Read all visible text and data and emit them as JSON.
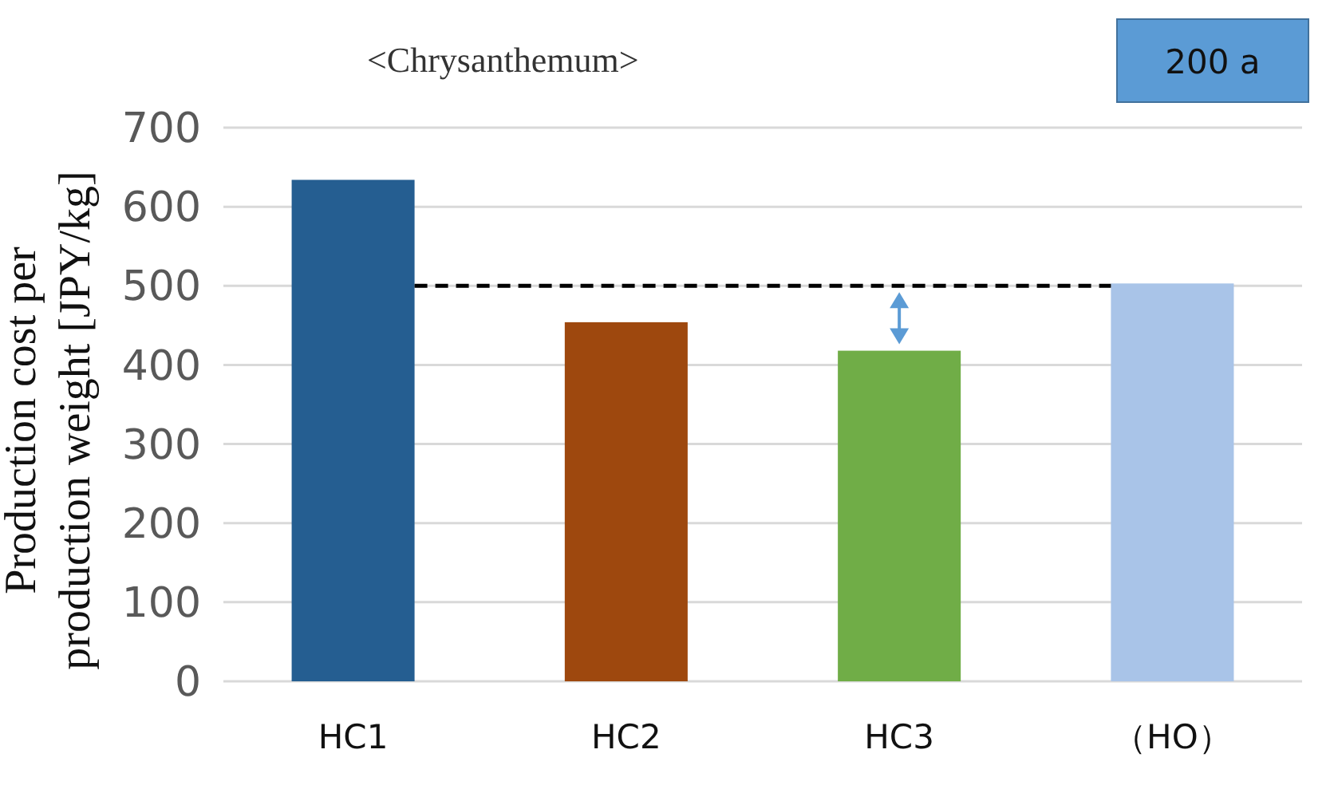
{
  "chart_data": {
    "type": "bar",
    "title": "<Chrysanthemum>",
    "ylabel": "Production cost per production weight [JPY/kg]",
    "categories": [
      "HC1",
      "HC2",
      "HC3",
      "（HO）"
    ],
    "values": [
      634,
      454,
      418,
      503
    ],
    "colors": [
      "#255e91",
      "#9e480e",
      "#70ad47",
      "#a9c4e8"
    ],
    "ylim": [
      0,
      700
    ],
    "yticks": [
      0,
      100,
      200,
      300,
      400,
      500,
      600,
      700
    ],
    "grid": "y",
    "ref_lines": [
      {
        "axis": "y",
        "value": 500,
        "color": "#000000",
        "line_style": "dashed"
      }
    ],
    "annotations": [
      "200 a"
    ]
  }
}
